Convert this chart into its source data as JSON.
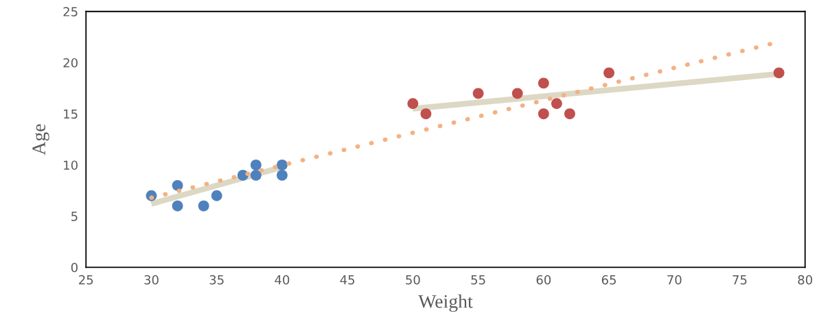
{
  "chart_data": {
    "type": "scatter",
    "xlabel": "Weight",
    "ylabel": "Age",
    "xlim": [
      25,
      80
    ],
    "xticks": [
      25,
      30,
      35,
      40,
      45,
      50,
      55,
      60,
      65,
      70,
      75,
      80
    ],
    "ylim": [
      0,
      25
    ],
    "yticks": [
      0,
      5,
      10,
      15,
      20,
      25
    ],
    "grid": false,
    "legend": false,
    "series": [
      {
        "type": "line",
        "color": "#ddd8c4",
        "line_style": "solid",
        "marker": "none",
        "x": [
          30,
          40
        ],
        "values": [
          6.2,
          9.8
        ]
      },
      {
        "type": "line",
        "color": "#ddd8c4",
        "line_style": "solid",
        "marker": "none",
        "x": [
          50,
          78
        ],
        "values": [
          15.5,
          18.9
        ]
      },
      {
        "color": "#4f81bd",
        "marker": "circle",
        "x": [
          30,
          32,
          32,
          34,
          35,
          37,
          38,
          38,
          40,
          40
        ],
        "values": [
          7,
          8,
          6,
          6,
          7,
          9,
          10,
          9,
          10,
          9
        ]
      },
      {
        "color": "#c0504d",
        "marker": "circle",
        "x": [
          50,
          51,
          55,
          58,
          60,
          60,
          61,
          62,
          65,
          78
        ],
        "values": [
          16,
          15,
          17,
          17,
          18,
          15,
          16,
          15,
          19,
          19
        ]
      },
      {
        "type": "line",
        "color": "#f4b183",
        "line_style": "dotted",
        "marker": "none",
        "x": [
          30,
          77.6
        ],
        "values": [
          6.8,
          21.9
        ]
      }
    ]
  }
}
